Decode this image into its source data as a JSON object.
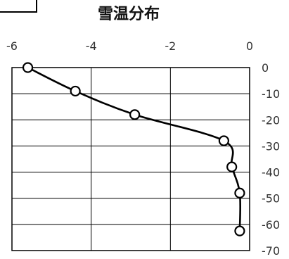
{
  "chart_data": {
    "type": "line",
    "title": "雪温分布",
    "xlabel": "",
    "ylabel": "",
    "xlim": [
      -6,
      0
    ],
    "ylim": [
      -70,
      0
    ],
    "x_ticks": [
      -6,
      -4,
      -2,
      0
    ],
    "y_ticks": [
      0,
      -10,
      -20,
      -30,
      -40,
      -50,
      -60,
      -70
    ],
    "grid": {
      "x": true,
      "y": true
    },
    "series": [
      {
        "values": [
          {
            "x": -5.6,
            "y": 0
          },
          {
            "x": -4.4,
            "y": -9
          },
          {
            "x": -2.9,
            "y": -18
          },
          {
            "x": -0.65,
            "y": -28
          },
          {
            "x": -0.45,
            "y": -38
          },
          {
            "x": -0.25,
            "y": -48
          },
          {
            "x": -0.25,
            "y": -62.5
          }
        ]
      }
    ]
  }
}
